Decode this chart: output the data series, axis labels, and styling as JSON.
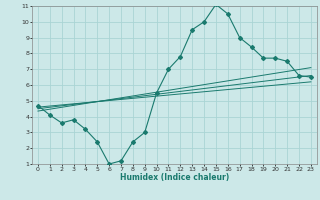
{
  "title": "",
  "xlabel": "Humidex (Indice chaleur)",
  "xlim": [
    -0.5,
    23.5
  ],
  "ylim": [
    1,
    11
  ],
  "xticks": [
    0,
    1,
    2,
    3,
    4,
    5,
    6,
    7,
    8,
    9,
    10,
    11,
    12,
    13,
    14,
    15,
    16,
    17,
    18,
    19,
    20,
    21,
    22,
    23
  ],
  "yticks": [
    1,
    2,
    3,
    4,
    5,
    6,
    7,
    8,
    9,
    10,
    11
  ],
  "bg_color": "#cce8e8",
  "grid_color": "#aad4d4",
  "line_color": "#1a7a6e",
  "main_x": [
    0,
    1,
    2,
    3,
    4,
    5,
    6,
    7,
    8,
    9,
    10,
    11,
    12,
    13,
    14,
    15,
    16,
    17,
    18,
    19,
    20,
    21,
    22,
    23
  ],
  "main_y": [
    4.7,
    4.1,
    3.6,
    3.8,
    3.2,
    2.4,
    1.0,
    1.2,
    2.4,
    3.0,
    5.5,
    7.0,
    7.8,
    9.5,
    10.0,
    11.1,
    10.5,
    9.0,
    8.4,
    7.7,
    7.7,
    7.5,
    6.6,
    6.5
  ],
  "trend1_x": [
    0,
    23
  ],
  "trend1_y": [
    4.6,
    6.2
  ],
  "trend2_x": [
    0,
    23
  ],
  "trend2_y": [
    4.5,
    6.6
  ],
  "trend3_x": [
    0,
    23
  ],
  "trend3_y": [
    4.35,
    7.1
  ]
}
